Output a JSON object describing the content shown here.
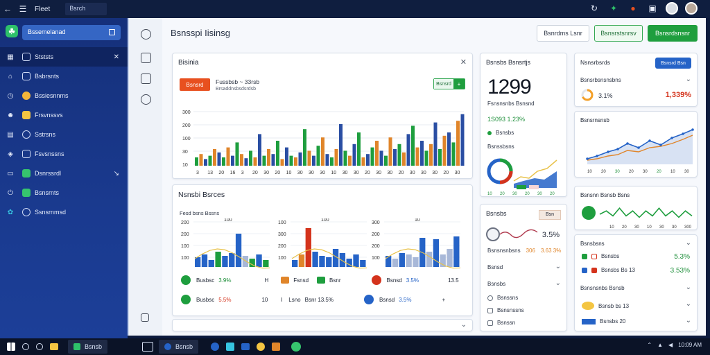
{
  "window": {
    "title": "Fleet",
    "search_text": "Bsrch"
  },
  "sidebar": {
    "search_label": "Bssemelanad",
    "items": [
      {
        "label": "Stststs",
        "icon1": "grid-icon",
        "icon2": "chart-icon",
        "trail": "✕",
        "active": true
      },
      {
        "label": "Bsbrsnts",
        "icon1": "home-icon",
        "icon2": "doc-icon",
        "trail": ""
      },
      {
        "label": "Bssiesnnms",
        "icon1": "clock-icon",
        "icon2": "coin-icon",
        "trail": ""
      },
      {
        "label": "Frsvnssvs",
        "icon1": "user-icon",
        "icon2": "folder-icon",
        "trail": ""
      },
      {
        "label": "Sstrsns",
        "icon1": "table-icon",
        "icon2": "gear-icon",
        "trail": ""
      },
      {
        "label": "Fsvsnssns",
        "icon1": "tag-icon",
        "icon2": "grid-icon",
        "trail": ""
      },
      {
        "label": "Dsnrssrdl",
        "icon1": "mail-icon",
        "icon2": "check-icon",
        "trail": "↘"
      },
      {
        "label": "Bsnsrnts",
        "icon1": "power-icon",
        "icon2": "check-icon",
        "trail": ""
      },
      {
        "label": "Ssnsrnmsd",
        "icon1": "gear-icon",
        "icon2": "gear-icon",
        "trail": ""
      }
    ]
  },
  "header": {
    "title": "Bsnsspi Iisinsg",
    "btn_outline": "Bsnrdms Lsnr",
    "btn_green_outline": "Bsnsrstsnrsv",
    "btn_green": "Bsnsrdsnsnr"
  },
  "main_chart": {
    "title": "Bisinia",
    "tag_red": "Bsnsrd",
    "label": "Fussbsb ~ 33rsb",
    "sublabel": "Brsaddnsbsdsrdsb",
    "tag_green": "Bsnsrd",
    "y_ticks": [
      "300",
      "200",
      "100",
      "30",
      "10"
    ],
    "x_ticks": [
      "3",
      "13",
      "20",
      "16",
      "3",
      "20",
      "30",
      "20",
      "10",
      "30",
      "30",
      "30",
      "10",
      "30",
      "30",
      "20",
      "30",
      "30",
      "20",
      "30",
      "30",
      "30",
      "20",
      "30"
    ]
  },
  "second_chart": {
    "title": "Nsnsbi Bsrces",
    "sub": "Fesd bsns Bssns",
    "charts": [
      {
        "ticks": [
          "200",
          "200",
          "100",
          "100"
        ],
        "label": "100"
      },
      {
        "ticks": [
          "100",
          "300",
          "200",
          "100"
        ],
        "label": "100"
      },
      {
        "ticks": [
          "300",
          "200",
          "200",
          "100"
        ],
        "label": "10"
      }
    ],
    "legend": [
      {
        "label": "Busbsc",
        "value": "3.9%",
        "color": "#1e9e3e",
        "extra": "H",
        "extra2": "Fsnsd",
        "value2": "Bsnr",
        "extra3": "Bsnsd",
        "value3": "3.5%",
        "value4": "13.5"
      },
      {
        "label": "Busbsc",
        "value": "5.5%",
        "color": "#1e9e3e",
        "extra": "10",
        "extra2": "Lsno",
        "value2": "Bsnr 13.5%",
        "extra3": "Bsnsd",
        "value3": "3.5%",
        "value4": "+"
      }
    ]
  },
  "stats_card": {
    "title": "Bsnsbs Bsnsrtjs",
    "value": "1299",
    "sub": "Fsnsnsnbs Bsnsnd",
    "row": "1S093 1.23%",
    "dot_label": "Bsnsbs",
    "mini_title": "Bsnssbsns",
    "x_labels": [
      "10",
      "20",
      "30",
      "20",
      "30",
      "20"
    ]
  },
  "right_top": {
    "title": "Nsnsrbsrds",
    "btn": "Bsnsrd Bsn",
    "row_label": "Bsnsrbsnsnsbns",
    "value": "3.1%",
    "red_value": "1,339%"
  },
  "right_line": {
    "title": "Bsnsrnsnsb",
    "x_labels": [
      "10",
      "20",
      "30",
      "20",
      "30",
      "20",
      "10",
      "30"
    ]
  },
  "trend_card": {
    "title": "Bsnsbs",
    "tag": "Bsn",
    "value": "3.5%",
    "sub": "Bsnsnsnbsns",
    "sub_val": "306",
    "red_val": "3.63 3%",
    "rows": [
      "Bsnsd",
      "Bsnsbs",
      "Bsnssns",
      "Bsnsnssns",
      "Bsnssn"
    ]
  },
  "right_wave": {
    "title": "Bsnsnn Bsnsb Bsns",
    "x_labels": [
      "10",
      "20",
      "30",
      "10",
      "30",
      "30",
      "300"
    ]
  },
  "right_list": {
    "title": "Bsnsbsns",
    "rows": [
      {
        "label": "Bsnsbs",
        "value": "5.3%"
      },
      {
        "label": "Bsnsbs Bs 13",
        "value": "3.53%"
      }
    ],
    "sub_title": "Bsnsnsnbs Bsnsb",
    "row3": "Bsnsb bs 13",
    "row4": "Bsnsbs 20"
  },
  "taskbar": {
    "apps": [
      "Bsnsb",
      "Bsnsb"
    ],
    "tray": [
      "10:09 AM"
    ]
  },
  "colors": {
    "green": "#1f9e3e",
    "orange": "#e0852a",
    "red": "#d4331c",
    "blue": "#2563c7",
    "sidebar": "#15307a"
  }
}
